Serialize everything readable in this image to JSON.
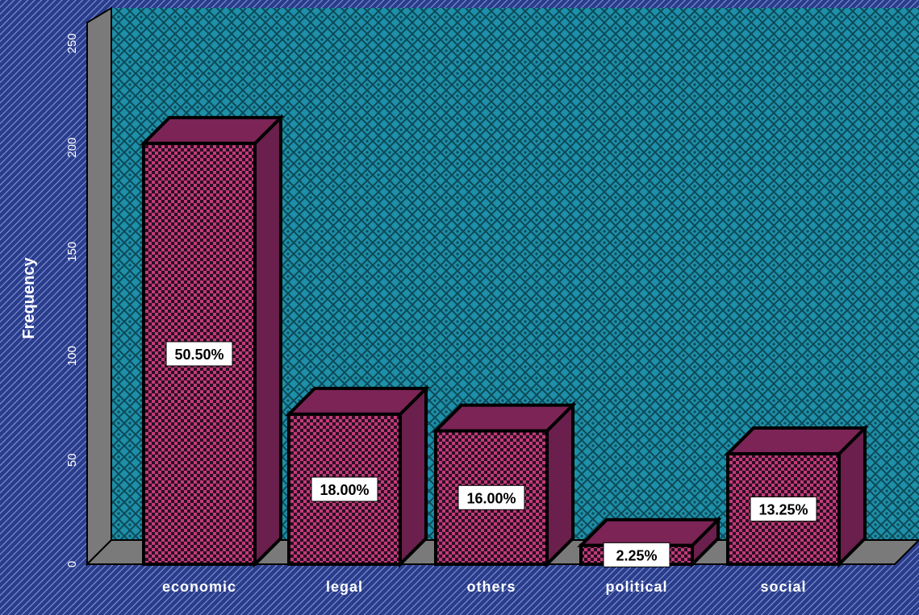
{
  "chart_data": {
    "type": "bar",
    "title": "",
    "xlabel": "",
    "ylabel": "Frequency",
    "ylim": [
      0,
      260
    ],
    "yticks": [
      0,
      50,
      100,
      150,
      200,
      250
    ],
    "categories": [
      "economic",
      "legal",
      "others",
      "political",
      "social"
    ],
    "values": [
      202,
      72,
      64,
      9,
      53
    ],
    "percent_labels": [
      "50.50%",
      "18.00%",
      "16.00%",
      "2.25%",
      "13.25%"
    ],
    "style": "3d-bars",
    "grid": false,
    "legend": "none",
    "colors": {
      "outer_background": "#2a3d8c",
      "plot_background": "#1e8fa8",
      "bar_fill": "#c23a7a",
      "bar_top": "#7c2456",
      "bar_side": "#6a1f4c",
      "wall": "#7a7a7a"
    }
  }
}
